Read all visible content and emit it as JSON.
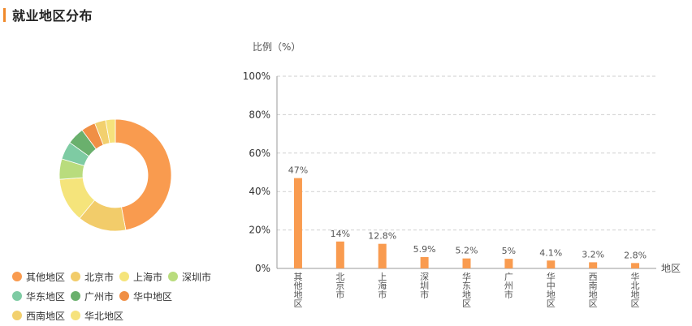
{
  "page": {
    "title": "就业地区分布",
    "accent_color": "#f0892b"
  },
  "chart_data": [
    {
      "type": "pie",
      "variant": "donut",
      "title": "",
      "categories": [
        "其他地区",
        "北京市",
        "上海市",
        "深圳市",
        "华东地区",
        "广州市",
        "华中地区",
        "西南地区",
        "华北地区"
      ],
      "values": [
        47,
        14,
        12.8,
        5.9,
        5.2,
        5,
        4.1,
        3.2,
        2.8
      ],
      "colors": [
        "#f99b4f",
        "#f2cc6a",
        "#f5e47b",
        "#b9dc7d",
        "#7ecba3",
        "#6ab06d",
        "#f08f45",
        "#f2d06e",
        "#f6e27c"
      ],
      "legend": {
        "placement": "bottom-left",
        "rows": [
          [
            "其他地区",
            "北京市",
            "上海市",
            "深圳市"
          ],
          [
            "华东地区",
            "广州市",
            "华中地区"
          ],
          [
            "西南地区",
            "华北地区"
          ]
        ]
      }
    },
    {
      "type": "bar",
      "title": "",
      "categories": [
        "其他地区",
        "北京市",
        "上海市",
        "深圳市",
        "华东地区",
        "广州市",
        "华中地区",
        "西南地区",
        "华北地区"
      ],
      "values": [
        47,
        14,
        12.8,
        5.9,
        5.2,
        5,
        4.1,
        3.2,
        2.8
      ],
      "value_labels": [
        "47%",
        "14%",
        "12.8%",
        "5.9%",
        "5.2%",
        "5%",
        "4.1%",
        "3.2%",
        "2.8%"
      ],
      "ylabel": "比例（%）",
      "xlabel": "地区",
      "ylim": [
        0,
        100
      ],
      "yticks": [
        "0%",
        "20%",
        "40%",
        "60%",
        "80%",
        "100%"
      ],
      "ytick_values": [
        0,
        20,
        40,
        60,
        80,
        100
      ],
      "grid": "horizontal-dashed",
      "bar_color": "#f99b4f",
      "x_tick_orientation": "vertical-stacked"
    }
  ]
}
